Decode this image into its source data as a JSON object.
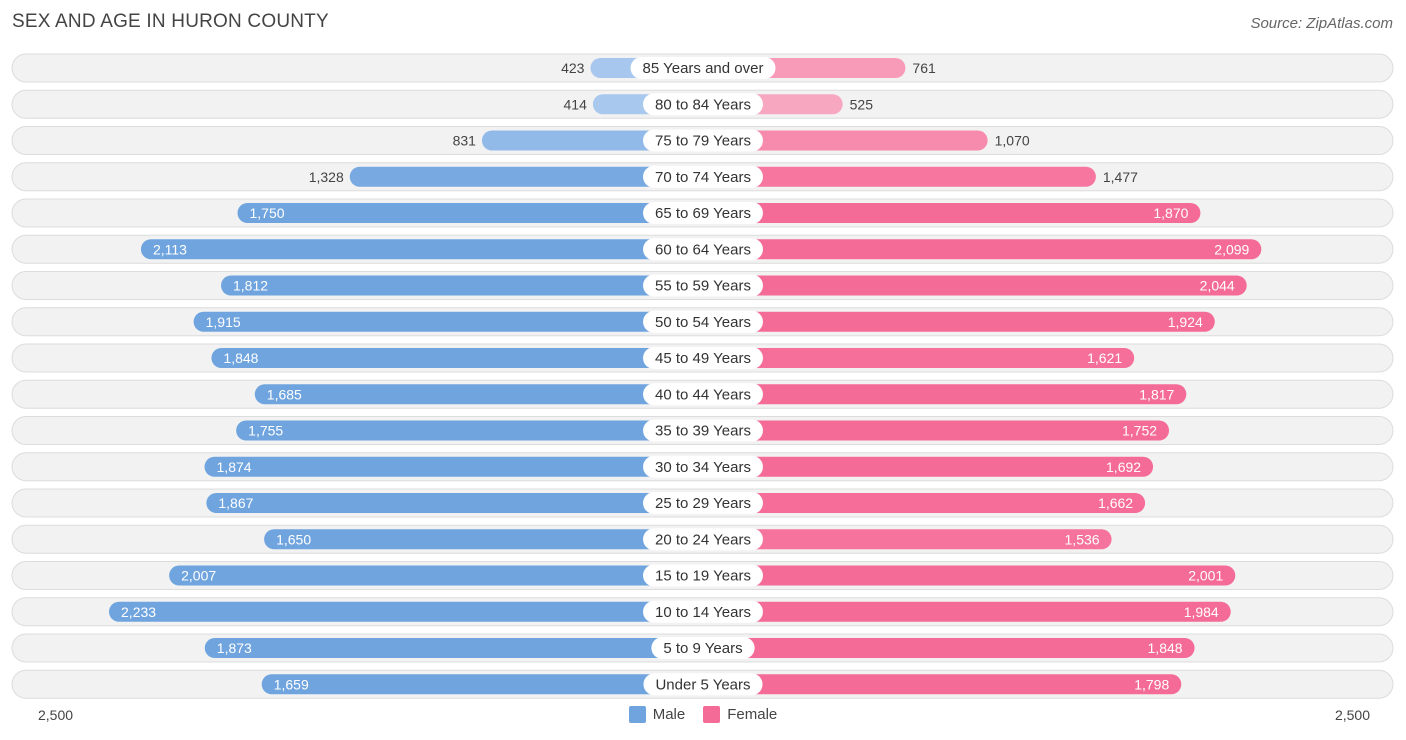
{
  "title": "SEX AND AGE IN HURON COUNTY",
  "source": "Source: ZipAtlas.com",
  "colors": {
    "male_strong": "#6fa4de",
    "male_light": "#a9c8ee",
    "female_strong": "#f56b97",
    "female_light": "#f8a8c2"
  },
  "legend": {
    "male": "Male",
    "female": "Female"
  },
  "axis": {
    "left_label": "2,500",
    "right_label": "2,500"
  },
  "chart_data": {
    "type": "bar",
    "orientation": "horizontal-diverging",
    "title": "SEX AND AGE IN HURON COUNTY",
    "xlim": [
      -2500,
      2500
    ],
    "categories": [
      "85 Years and over",
      "80 to 84 Years",
      "75 to 79 Years",
      "70 to 74 Years",
      "65 to 69 Years",
      "60 to 64 Years",
      "55 to 59 Years",
      "50 to 54 Years",
      "45 to 49 Years",
      "40 to 44 Years",
      "35 to 39 Years",
      "30 to 34 Years",
      "25 to 29 Years",
      "20 to 24 Years",
      "15 to 19 Years",
      "10 to 14 Years",
      "5 to 9 Years",
      "Under 5 Years"
    ],
    "series": [
      {
        "name": "Male",
        "values": [
          423,
          414,
          831,
          1328,
          1750,
          2113,
          1812,
          1915,
          1848,
          1685,
          1755,
          1874,
          1867,
          1650,
          2007,
          2233,
          1873,
          1659
        ]
      },
      {
        "name": "Female",
        "values": [
          761,
          525,
          1070,
          1477,
          1870,
          2099,
          2044,
          1924,
          1621,
          1817,
          1752,
          1692,
          1662,
          1536,
          2001,
          1984,
          1848,
          1798
        ]
      }
    ],
    "value_labels": {
      "male": [
        "423",
        "414",
        "831",
        "1,328",
        "1,750",
        "2,113",
        "1,812",
        "1,915",
        "1,848",
        "1,685",
        "1,755",
        "1,874",
        "1,867",
        "1,650",
        "2,007",
        "2,233",
        "1,873",
        "1,659"
      ],
      "female": [
        "761",
        "525",
        "1,070",
        "1,477",
        "1,870",
        "2,099",
        "2,044",
        "1,924",
        "1,621",
        "1,817",
        "1,752",
        "1,692",
        "1,662",
        "1,536",
        "2,001",
        "1,984",
        "1,848",
        "1,798"
      ]
    },
    "legend_position": "bottom-center"
  }
}
